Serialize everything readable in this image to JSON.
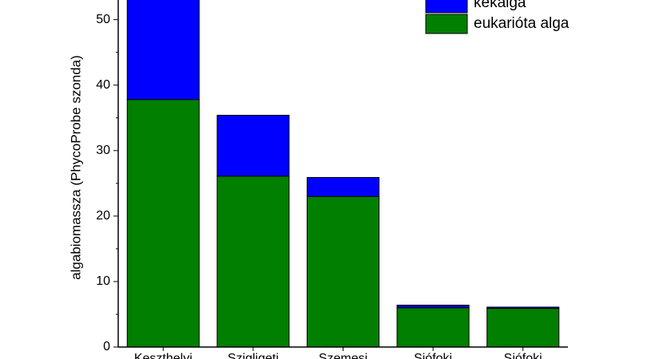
{
  "chart_data": {
    "type": "stacked_bar",
    "y_label": "algabiomassza (PhycoProbe szonda)",
    "categories": [
      "Keszthelyi",
      "Szigligeti",
      "Szemesi",
      "Siófoki",
      "Siófoki"
    ],
    "series": [
      {
        "name": "eukarióta alga",
        "color": "#007f00",
        "values": [
          37.8,
          26.1,
          23.0,
          6.0,
          5.9
        ]
      },
      {
        "name": "kékalga",
        "color": "#0000ff",
        "values": [
          16,
          9.3,
          2.9,
          0.4,
          0.2
        ]
      }
    ],
    "ylim": [
      0,
      53
    ],
    "yticks": [
      0,
      10,
      20,
      30,
      40,
      50
    ],
    "legend": "upper right"
  }
}
